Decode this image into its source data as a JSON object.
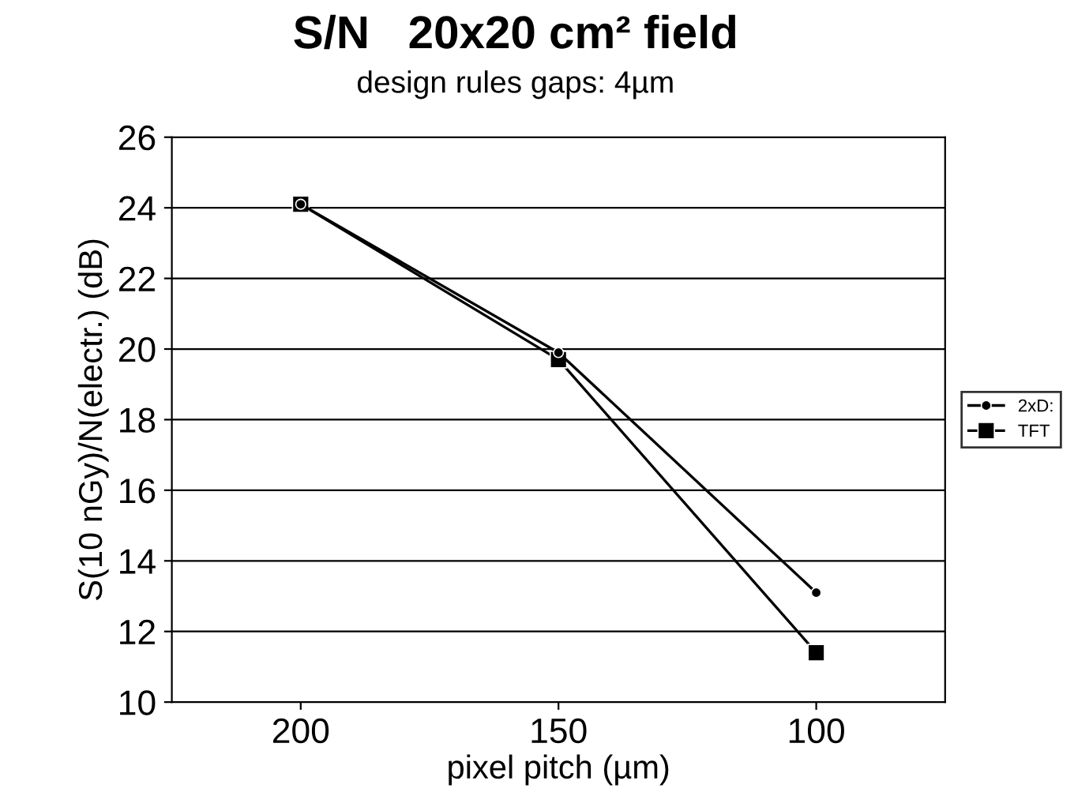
{
  "chart_data": {
    "type": "line",
    "title": "S/N   20x20 cm² field",
    "subtitle": "design rules gaps: 4µm",
    "xlabel": "pixel pitch (µm)",
    "ylabel": "S(10 nGy)/N(electr.) (dB)",
    "x": [
      200,
      150,
      100
    ],
    "series": [
      {
        "name": "2xD:",
        "color": "#000000",
        "marker": "circle",
        "values": [
          24.1,
          19.9,
          13.1
        ]
      },
      {
        "name": "TFT",
        "color": "#000000",
        "marker": "square",
        "values": [
          24.1,
          19.7,
          11.4
        ]
      }
    ],
    "xlim": [
      225,
      75
    ],
    "xticks": [
      200,
      150,
      100
    ],
    "ylim": [
      10,
      26
    ],
    "yticks": [
      10,
      12,
      14,
      16,
      18,
      20,
      22,
      24,
      26
    ],
    "grid": "y",
    "legend": "right",
    "line_style": "solid"
  }
}
